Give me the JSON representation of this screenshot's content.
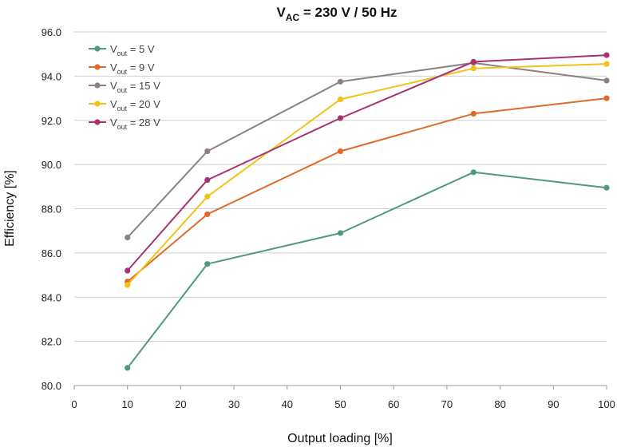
{
  "chart_data": {
    "type": "line",
    "title": {
      "prefix": "V",
      "subscript": "AC",
      "suffix": " = 230 V / 50 Hz"
    },
    "xlabel": "Output loading [%]",
    "ylabel": "Efficiency [%]",
    "xlim": [
      0,
      100
    ],
    "ylim": [
      80,
      96
    ],
    "x_ticks": [
      "0",
      "10",
      "20",
      "30",
      "40",
      "50",
      "60",
      "70",
      "80",
      "90",
      "100"
    ],
    "y_ticks": [
      "80.0",
      "82.0",
      "84.0",
      "86.0",
      "88.0",
      "90.0",
      "92.0",
      "94.0",
      "96.0"
    ],
    "grid": {
      "horizontal": true,
      "vertical": false
    },
    "legend_position": "top-left",
    "x": [
      10,
      25,
      50,
      75,
      100
    ],
    "series": [
      {
        "name": "Vout = 5 V",
        "label_main": "V",
        "label_sub": "out",
        "label_rest": " = 5 V",
        "color": "#4e9a7c",
        "values": [
          80.8,
          85.5,
          86.9,
          89.65,
          88.95
        ]
      },
      {
        "name": "Vout = 9 V",
        "label_main": "V",
        "label_sub": "out",
        "label_rest": " = 9 V",
        "color": "#e06a28",
        "values": [
          84.7,
          87.75,
          90.6,
          92.3,
          93.0
        ]
      },
      {
        "name": "Vout = 15 V",
        "label_main": "V",
        "label_sub": "out",
        "label_rest": " = 15 V",
        "color": "#8c8080",
        "values": [
          86.7,
          90.6,
          93.75,
          94.6,
          93.8
        ]
      },
      {
        "name": "Vout = 20 V",
        "label_main": "V",
        "label_sub": "out",
        "label_rest": " = 20 V",
        "color": "#f2c21b",
        "values": [
          84.55,
          88.55,
          92.95,
          94.35,
          94.55
        ]
      },
      {
        "name": "Vout = 28 V",
        "label_main": "V",
        "label_sub": "out",
        "label_rest": " = 28 V",
        "color": "#a83271",
        "values": [
          85.2,
          89.3,
          92.1,
          94.65,
          94.95
        ]
      }
    ]
  }
}
